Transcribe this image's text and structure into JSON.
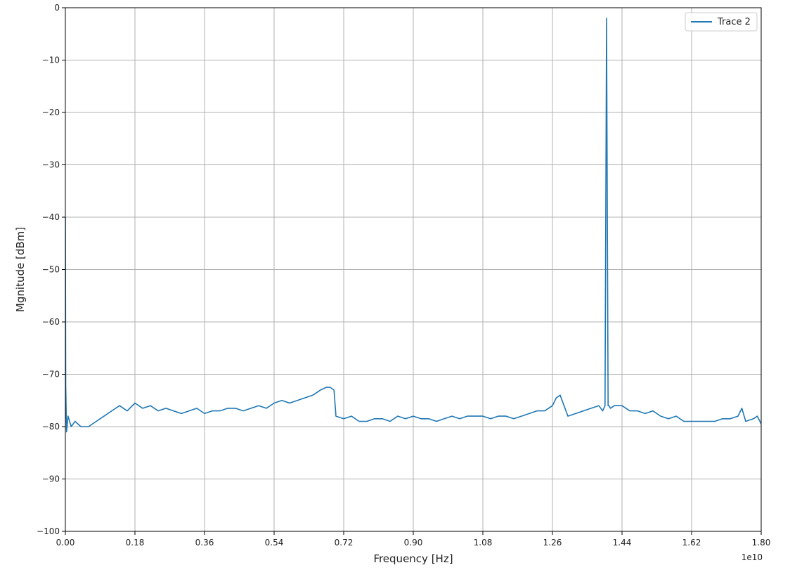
{
  "chart_data": {
    "type": "line",
    "title": "",
    "xlabel": "Frequency [Hz]",
    "ylabel": "Mgnitude [dBm]",
    "x_offset_label": "1e10",
    "xlim": [
      0.0,
      1.8
    ],
    "ylim": [
      -100,
      0
    ],
    "x_ticks": [
      "0.00",
      "0.18",
      "0.36",
      "0.54",
      "0.72",
      "0.90",
      "1.08",
      "1.26",
      "1.44",
      "1.62",
      "1.80"
    ],
    "y_ticks": [
      "0",
      "−10",
      "−20",
      "−30",
      "−40",
      "−50",
      "−60",
      "−70",
      "−80",
      "−90",
      "−100"
    ],
    "grid": true,
    "legend_position": "top-right",
    "series": [
      {
        "name": "Trace 2",
        "color": "#1f77b4",
        "x": [
          0.0,
          0.001,
          0.003,
          0.007,
          0.015,
          0.025,
          0.04,
          0.06,
          0.08,
          0.1,
          0.12,
          0.14,
          0.16,
          0.18,
          0.2,
          0.22,
          0.24,
          0.26,
          0.28,
          0.3,
          0.32,
          0.34,
          0.36,
          0.38,
          0.4,
          0.42,
          0.44,
          0.46,
          0.48,
          0.5,
          0.52,
          0.54,
          0.56,
          0.58,
          0.6,
          0.62,
          0.64,
          0.66,
          0.675,
          0.685,
          0.695,
          0.7,
          0.72,
          0.74,
          0.76,
          0.78,
          0.8,
          0.82,
          0.84,
          0.86,
          0.88,
          0.9,
          0.92,
          0.94,
          0.96,
          0.98,
          1.0,
          1.02,
          1.04,
          1.06,
          1.08,
          1.1,
          1.12,
          1.14,
          1.16,
          1.18,
          1.2,
          1.22,
          1.24,
          1.26,
          1.27,
          1.28,
          1.29,
          1.3,
          1.32,
          1.34,
          1.36,
          1.38,
          1.39,
          1.396,
          1.398,
          1.4,
          1.402,
          1.404,
          1.406,
          1.41,
          1.42,
          1.44,
          1.46,
          1.48,
          1.5,
          1.52,
          1.54,
          1.56,
          1.58,
          1.6,
          1.62,
          1.64,
          1.66,
          1.68,
          1.7,
          1.72,
          1.74,
          1.75,
          1.76,
          1.78,
          1.79,
          1.8
        ],
        "values": [
          -40,
          -72,
          -81,
          -78,
          -80,
          -79,
          -80,
          -80,
          -79,
          -78,
          -77,
          -76,
          -77,
          -75.5,
          -76.5,
          -76,
          -77,
          -76.5,
          -77,
          -77.5,
          -77,
          -76.5,
          -77.5,
          -77,
          -77,
          -76.5,
          -76.5,
          -77,
          -76.5,
          -76,
          -76.5,
          -75.5,
          -75,
          -75.5,
          -75,
          -74.5,
          -74,
          -73,
          -72.5,
          -72.5,
          -73,
          -78,
          -78.5,
          -78,
          -79,
          -79,
          -78.5,
          -78.5,
          -79,
          -78,
          -78.5,
          -78,
          -78.5,
          -78.5,
          -79,
          -78.5,
          -78,
          -78.5,
          -78,
          -78,
          -78,
          -78.5,
          -78,
          -78,
          -78.5,
          -78,
          -77.5,
          -77,
          -77,
          -76,
          -74.5,
          -74,
          -76,
          -78,
          -77.5,
          -77,
          -76.5,
          -76,
          -77,
          -76,
          -40,
          -2,
          -40,
          -76,
          -76,
          -76.5,
          -76,
          -76,
          -77,
          -77,
          -77.5,
          -77,
          -78,
          -78.5,
          -78,
          -79,
          -79,
          -79,
          -79,
          -79,
          -78.5,
          -78.5,
          -78,
          -76.5,
          -79,
          -78.5,
          -78,
          -79.5
        ]
      }
    ]
  }
}
